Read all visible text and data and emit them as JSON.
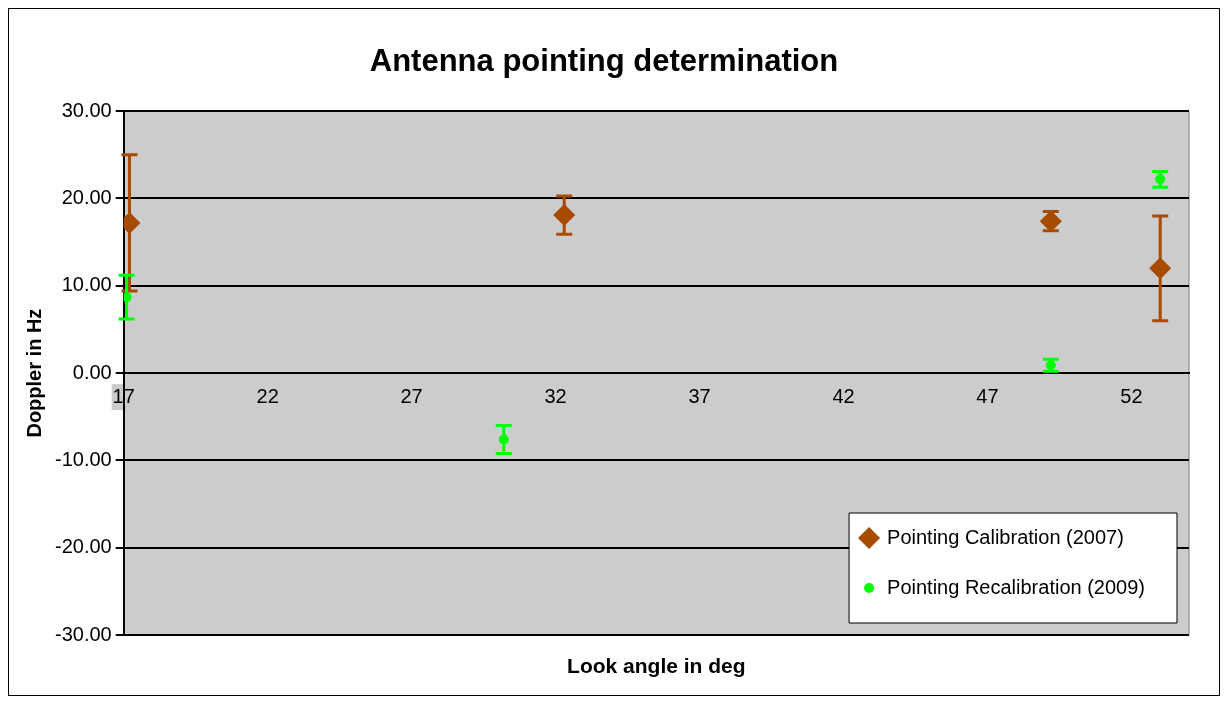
{
  "chart_data": {
    "type": "scatter",
    "title": "Antenna pointing determination",
    "xlabel": "Look angle in deg",
    "ylabel": "Doppler in Hz",
    "xlim": [
      17,
      54
    ],
    "xticks": [
      17,
      22,
      27,
      32,
      37,
      42,
      47,
      52
    ],
    "ylim": [
      -30,
      30
    ],
    "yticks": [
      {
        "value": -30,
        "label": "-30.00"
      },
      {
        "value": -20,
        "label": "-20.00"
      },
      {
        "value": -10,
        "label": "-10.00"
      },
      {
        "value": 0,
        "label": "0.00"
      },
      {
        "value": 10,
        "label": "10.00"
      },
      {
        "value": 20,
        "label": "20.00"
      },
      {
        "value": 30,
        "label": "30.00"
      }
    ],
    "grid": "y",
    "legend": "bottom right",
    "series": [
      {
        "name": "Pointing Calibration (2007)",
        "color": "#a64b00",
        "marker": "diamond",
        "x": [
          17.2,
          32.3,
          49.2,
          53.0
        ],
        "values": [
          17.2,
          18.1,
          17.4,
          12.0
        ],
        "errors": [
          7.8,
          2.2,
          1.1,
          6.0
        ]
      },
      {
        "name": "Pointing Recalibration (2009)",
        "color": "#00ff00",
        "marker": "circle",
        "x": [
          17.1,
          30.2,
          49.2,
          53.0
        ],
        "values": [
          8.7,
          -7.6,
          0.9,
          22.2
        ],
        "errors": [
          2.5,
          1.6,
          0.7,
          0.9
        ]
      }
    ]
  }
}
